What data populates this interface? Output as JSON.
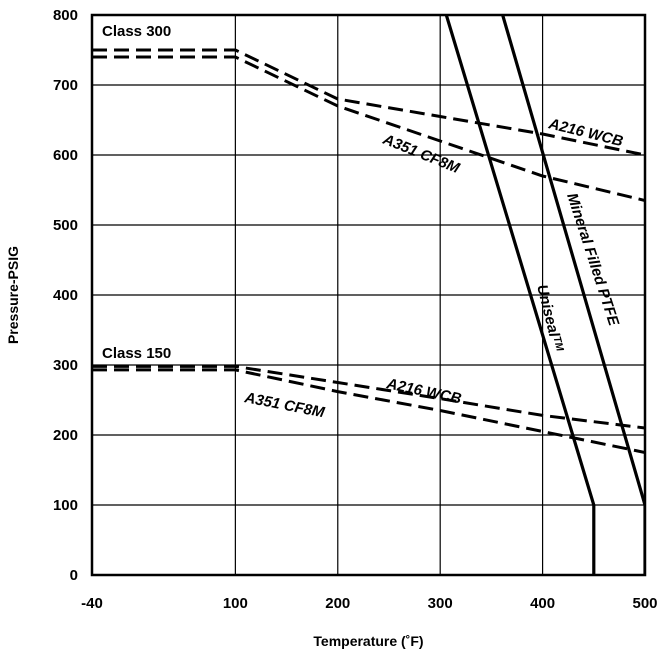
{
  "chart_data": {
    "type": "line",
    "title": "",
    "xlabel": "Temperature (˚F)",
    "ylabel": "Pressure-PSIG",
    "xlim": [
      -40,
      500
    ],
    "ylim": [
      0,
      800
    ],
    "x_ticks": [
      "-40",
      "100",
      "200",
      "300",
      "400",
      "500"
    ],
    "x_tick_values": [
      -40,
      100,
      200,
      300,
      400,
      500
    ],
    "y_ticks": [
      "0",
      "100",
      "200",
      "300",
      "400",
      "500",
      "600",
      "700",
      "800"
    ],
    "y_tick_values": [
      0,
      100,
      200,
      300,
      400,
      500,
      600,
      700,
      800
    ],
    "grid": true,
    "annotations": [
      "Class 300",
      "Class 150"
    ],
    "series": [
      {
        "name": "A216 WCB",
        "group": "Class 300",
        "style": "dashed",
        "x": [
          -40,
          100,
          200,
          300,
          400,
          500
        ],
        "y": [
          750,
          750,
          680,
          655,
          630,
          600
        ]
      },
      {
        "name": "A351 CF8M",
        "group": "Class 300",
        "style": "dashed",
        "x": [
          -40,
          100,
          200,
          300,
          400,
          500
        ],
        "y": [
          740,
          740,
          670,
          620,
          570,
          535
        ]
      },
      {
        "name": "A216 WCB",
        "group": "Class 150",
        "style": "dashed",
        "x": [
          -40,
          100,
          200,
          300,
          400,
          500
        ],
        "y": [
          298,
          298,
          275,
          252,
          228,
          210
        ]
      },
      {
        "name": "A351 CF8M",
        "group": "Class 150",
        "style": "dashed",
        "x": [
          -40,
          100,
          200,
          300,
          400,
          500
        ],
        "y": [
          293,
          293,
          262,
          235,
          205,
          175
        ]
      },
      {
        "name": "Unisealᵀᴹ",
        "style": "solid",
        "x": [
          306,
          450,
          450
        ],
        "y": [
          800,
          100,
          0
        ]
      },
      {
        "name": "Mineral Filled PTFE",
        "style": "solid",
        "x": [
          361,
          500,
          500
        ],
        "y": [
          800,
          100,
          0
        ]
      }
    ],
    "labels": [
      {
        "text": "A216 WCB",
        "series": 0
      },
      {
        "text": "A351 CF8M",
        "series": 1
      },
      {
        "text": "A216 WCB",
        "series": 2
      },
      {
        "text": "A351 CF8M",
        "series": 3
      },
      {
        "text": "Unisealᵀᴹ",
        "series": 4
      },
      {
        "text": "Mineral Filled PTFE",
        "series": 5
      }
    ]
  }
}
